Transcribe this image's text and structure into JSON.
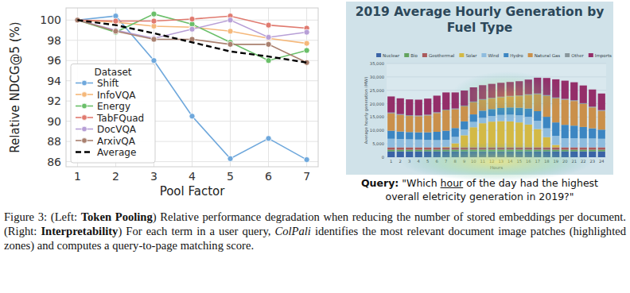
{
  "chart_data": [
    {
      "type": "line",
      "y_label": "Relative NDCG@5 (%)",
      "x_label": "Pool Factor",
      "x": [
        1,
        2,
        3,
        4,
        5,
        6,
        7
      ],
      "xlim": [
        0.7,
        7.3
      ],
      "xticks": [
        1,
        2,
        3,
        4,
        5,
        6,
        7
      ],
      "ylim": [
        85.5,
        101.2
      ],
      "yticks": [
        86,
        88,
        90,
        92,
        94,
        96,
        98,
        100
      ],
      "grid": true,
      "legend": "lower left",
      "legend_title": "Dataset",
      "marker": "circle",
      "series": [
        {
          "name": "Shift",
          "color": "#6fa8dc",
          "values": [
            100,
            100.4,
            96.0,
            90.5,
            86.3,
            88.3,
            86.2
          ]
        },
        {
          "name": "InfoVQA",
          "color": "#f5b87a",
          "values": [
            100,
            99.8,
            99.4,
            99.3,
            98.9,
            98.2,
            97.7
          ]
        },
        {
          "name": "Energy",
          "color": "#6abf69",
          "values": [
            100,
            98.8,
            100.6,
            99.6,
            97.8,
            96.0,
            97.0
          ]
        },
        {
          "name": "TabFQuad",
          "color": "#e07a6f",
          "values": [
            100,
            99.9,
            99.9,
            100.1,
            100.4,
            99.5,
            99.2
          ]
        },
        {
          "name": "DocVQA",
          "color": "#b79fd6",
          "values": [
            100,
            99.0,
            98.2,
            99.1,
            100.0,
            98.3,
            98.8
          ]
        },
        {
          "name": "ArxivQA",
          "color": "#a9806f",
          "values": [
            100,
            98.9,
            98.1,
            98.1,
            97.6,
            97.6,
            95.8
          ]
        },
        {
          "name": "Average",
          "color": "#000000",
          "line_style": "dashed",
          "marker": "none",
          "values": [
            100,
            99.5,
            98.7,
            97.8,
            96.9,
            96.4,
            95.8
          ]
        }
      ]
    },
    {
      "type": "bar",
      "stacked": true,
      "title": "2019 Average Hourly Generation by Fuel Type",
      "x_label": "Hours",
      "y_label": "Average hourly generation (MW)",
      "categories": [
        "1",
        "2",
        "3",
        "4",
        "5",
        "6",
        "7",
        "8",
        "9",
        "10",
        "11",
        "12",
        "13",
        "14",
        "15",
        "16",
        "17",
        "18",
        "19",
        "20",
        "21",
        "22",
        "23",
        "24"
      ],
      "ylim": [
        0,
        35000
      ],
      "yticks": [
        0,
        {
          "value": 5000,
          "label": "5,000"
        },
        {
          "value": 10000,
          "label": "10,000"
        },
        {
          "value": 15000,
          "label": "15,000"
        },
        {
          "value": 20000,
          "label": "20,000"
        },
        {
          "value": 25000,
          "label": "25,000"
        },
        {
          "value": 30000,
          "label": "30,000"
        },
        {
          "value": 35000,
          "label": "35,000"
        }
      ],
      "grid": true,
      "legend": "top",
      "series": [
        {
          "name": "Nuclear",
          "color": "#3b5ba5",
          "values": [
            2200,
            2200,
            2200,
            2200,
            2200,
            2200,
            2200,
            2200,
            2200,
            2200,
            2200,
            2200,
            2200,
            2200,
            2200,
            2200,
            2200,
            2200,
            2200,
            2200,
            2200,
            2200,
            2200,
            2200
          ]
        },
        {
          "name": "Bio",
          "color": "#6aa84f",
          "values": [
            600,
            600,
            600,
            600,
            600,
            600,
            600,
            600,
            600,
            600,
            600,
            600,
            600,
            600,
            600,
            600,
            600,
            600,
            600,
            600,
            600,
            600,
            600,
            600
          ]
        },
        {
          "name": "Geothermal",
          "color": "#c0504d",
          "values": [
            900,
            900,
            900,
            900,
            900,
            900,
            900,
            900,
            900,
            900,
            900,
            900,
            900,
            900,
            900,
            900,
            900,
            900,
            900,
            900,
            900,
            900,
            900,
            900
          ]
        },
        {
          "name": "Solar",
          "color": "#f1c232",
          "values": [
            0,
            0,
            0,
            0,
            0,
            0,
            200,
            1500,
            4500,
            7500,
            9000,
            9600,
            9800,
            9700,
            9300,
            8500,
            6800,
            3800,
            900,
            0,
            0,
            0,
            0,
            0
          ]
        },
        {
          "name": "Wind",
          "color": "#9fc5e8",
          "values": [
            3200,
            3100,
            3000,
            2900,
            2800,
            2700,
            2600,
            2400,
            2200,
            2000,
            2000,
            2100,
            2300,
            2500,
            2700,
            2900,
            3100,
            3300,
            3400,
            3400,
            3400,
            3300,
            3300,
            3200
          ]
        },
        {
          "name": "Hydro",
          "color": "#3d85c6",
          "values": [
            3000,
            2800,
            2700,
            2700,
            2800,
            3100,
            3400,
            3300,
            3000,
            2800,
            2700,
            2600,
            2600,
            2700,
            2800,
            3100,
            3600,
            4300,
            5000,
            5000,
            4700,
            4300,
            3800,
            3400
          ]
        },
        {
          "name": "Natural Gas",
          "color": "#e69138",
          "values": [
            6500,
            6200,
            6000,
            6000,
            6300,
            7000,
            7600,
            7000,
            5600,
            4500,
            4000,
            3900,
            3900,
            4000,
            4300,
            5000,
            6300,
            7800,
            9000,
            9400,
            9200,
            8600,
            7800,
            7000
          ]
        },
        {
          "name": "Other",
          "color": "#999999",
          "values": [
            300,
            300,
            300,
            300,
            300,
            300,
            300,
            300,
            300,
            300,
            300,
            300,
            300,
            300,
            300,
            300,
            300,
            300,
            300,
            300,
            300,
            300,
            300,
            300
          ]
        },
        {
          "name": "Imports",
          "color": "#a61c5c",
          "values": [
            6000,
            5900,
            5900,
            5900,
            6000,
            6200,
            6400,
            6000,
            5600,
            5300,
            5200,
            5200,
            5200,
            5200,
            5300,
            5500,
            5900,
            6400,
            6800,
            6800,
            6700,
            6600,
            6400,
            6200
          ]
        }
      ]
    }
  ],
  "query": [
    {
      "text": "Query:",
      "bold": true
    },
    {
      "text": " \"Which "
    },
    {
      "text": "hour",
      "underline": true
    },
    {
      "text": " of the day had the highest overall eletricity generation in 2019?\""
    }
  ],
  "caption": [
    {
      "text": "Figure 3: (Left: "
    },
    {
      "text": "Token Pooling",
      "bold": true
    },
    {
      "text": ") Relative performance degradation when reducing the number of stored embeddings per document. (Right: "
    },
    {
      "text": "Interpretability",
      "bold": true
    },
    {
      "text": ") For each term in a user query, "
    },
    {
      "text": "ColPali",
      "italic": true
    },
    {
      "text": " identifies the most relevant document image patches (highlighted zones) and computes a query-to-page matching score."
    }
  ]
}
